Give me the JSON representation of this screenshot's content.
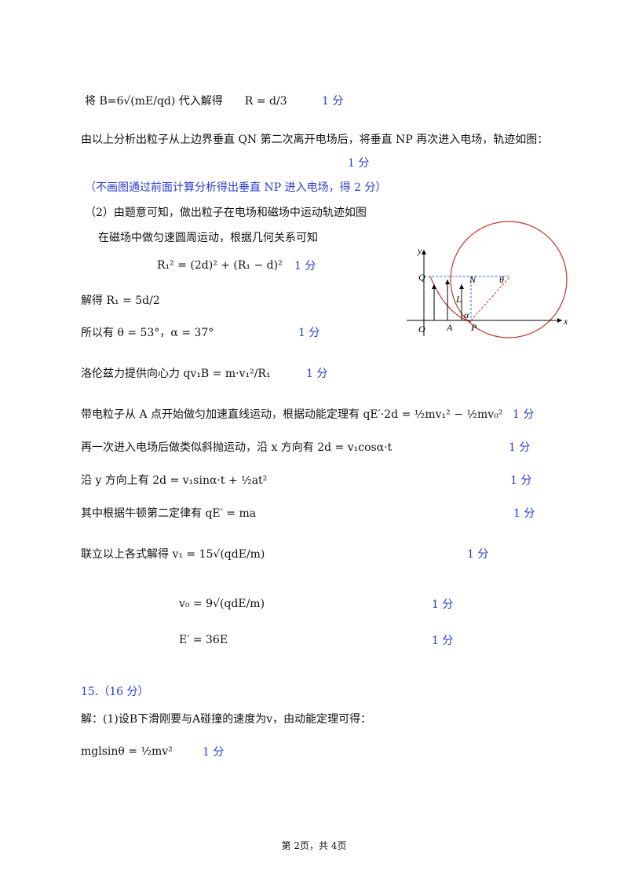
{
  "lines": [
    {
      "text": "将 B=6√(mE/qd) 代入解得　　R = d/3",
      "score": "1 分"
    },
    {
      "text": "由以上分析出粒子从上边界垂直 QN 第二次离开电场后，将垂直 NP 再次进入电场，轨迹如图："
    },
    {
      "score": "1 分"
    },
    {
      "text": "（不画图通过前面计算分析得出垂直 NP 进入电场，得 2 分）"
    },
    {
      "text": "（2）由题意可知，做出粒子在电场和磁场中运动轨迹如图"
    },
    {
      "text": "在磁场中做匀速圆周运动，根据几何关系可知"
    },
    {
      "text": "R₁² = (2d)² + (R₁ − d)²",
      "score": "1 分"
    },
    {
      "text": "解得 R₁ = 5d/2"
    },
    {
      "text": "所以有 θ = 53°，α = 37°",
      "score": "1 分"
    },
    {
      "text": "洛伦兹力提供向心力 qv₁B = m·v₁²/R₁",
      "score": "1 分"
    },
    {
      "text": "带电粒子从 A 点开始做匀加速直线运动，根据动能定理有 qE′·2d = ½mv₁² − ½mv₀²",
      "score": "1 分"
    },
    {
      "text": "再一次进入电场后做类似斜抛运动，沿 x 方向有 2d = v₁cosα·t",
      "score": "1 分"
    },
    {
      "text": "沿 y 方向上有 2d = v₁sinα·t + ½at²",
      "score": "1 分"
    },
    {
      "text": "其中根据牛顿第二定律有 qE′ = ma",
      "score": "1 分"
    },
    {
      "text": "联立以上各式解得 v₁ = 15√(qdE/m)",
      "score": "1 分"
    },
    {
      "text": "v₀ = 9√(qdE/m)",
      "score": "1 分"
    },
    {
      "text": "E′ = 36E",
      "score": "1 分"
    },
    {
      "text": "15.（16 分）"
    },
    {
      "text": "解：(1)设B下滑刚要与A碰撞的速度为v，由动能定理可得："
    },
    {
      "text": "mglsinθ = ½mv²",
      "score": "1 分"
    }
  ],
  "figure": {
    "labels": [
      "y",
      "x",
      "O",
      "A",
      "P",
      "Q",
      "N",
      "L",
      "θ",
      "α"
    ]
  },
  "footer": "第 2页，共 4页"
}
